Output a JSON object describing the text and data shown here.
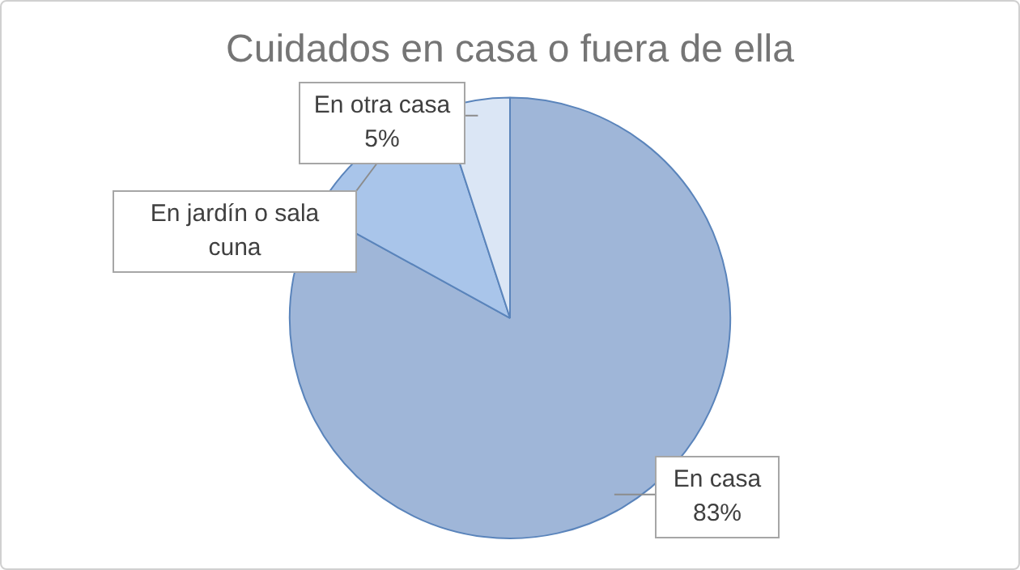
{
  "chart_data": {
    "type": "pie",
    "title": "Cuidados en casa o fuera de ella",
    "categories": [
      "En casa",
      "En jardín o sala cuna",
      "En otra casa"
    ],
    "values": [
      83,
      12,
      5
    ],
    "colors": [
      "#9fb6d8",
      "#a9c5ea",
      "#dbe6f5"
    ],
    "value_labels": [
      "83%",
      null,
      "5%"
    ],
    "legend": false
  }
}
